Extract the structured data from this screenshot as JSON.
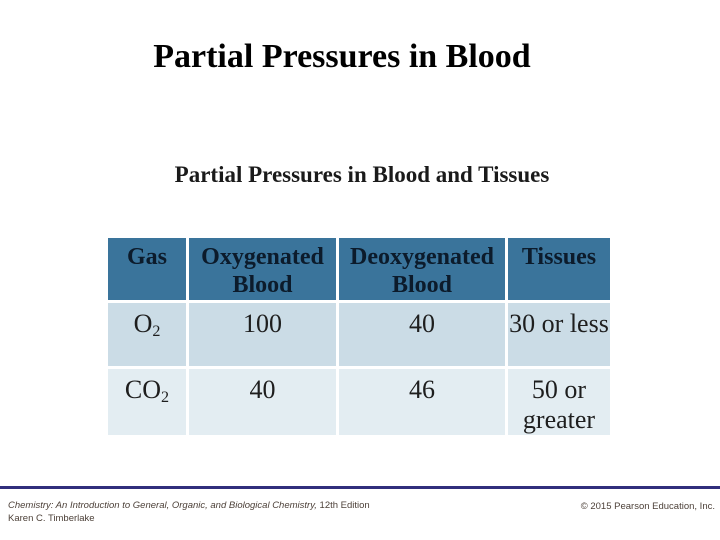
{
  "slide": {
    "title": "Partial Pressures in Blood",
    "subtitle": "Partial Pressures in Blood and Tissues"
  },
  "table": {
    "headers": [
      "Gas",
      "Oxygenated Blood",
      "Deoxygenated Blood",
      "Tissues"
    ],
    "rows": [
      {
        "gas_base": "O",
        "gas_sub": "2",
        "cells": [
          "100",
          "40",
          "30 or less"
        ]
      },
      {
        "gas_base": "CO",
        "gas_sub": "2",
        "cells": [
          "40",
          "46",
          "50 or greater"
        ]
      }
    ]
  },
  "footer": {
    "book_title": "Chemistry: An Introduction to General, Organic, and Biological Chemistry,",
    "edition": " 12th Edition",
    "author": "Karen C. Timberlake",
    "copyright": "© 2015 Pearson Education, Inc."
  },
  "colors": {
    "table_header_bg": "#3a749b",
    "table_row1_bg": "#cbdce6",
    "table_row2_bg": "#e3edf2",
    "header_text": "#0c1b2b",
    "footer_divider": "#312f7c",
    "footer_text": "#4d4139"
  }
}
